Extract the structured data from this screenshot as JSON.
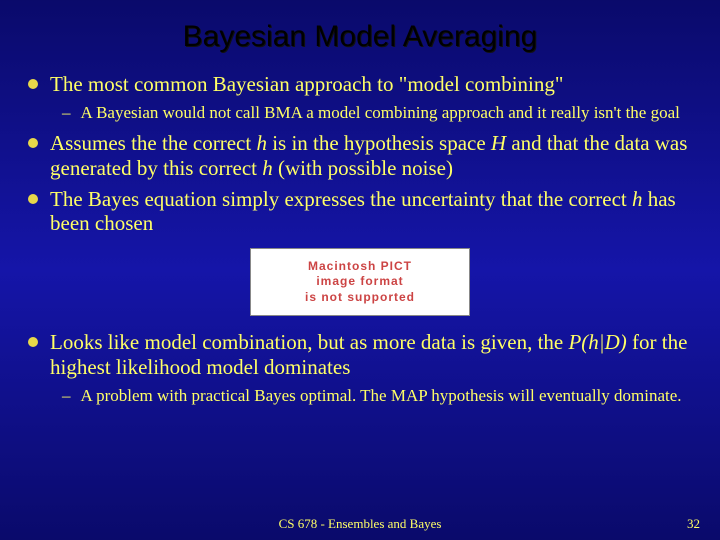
{
  "title": "Bayesian Model Averaging",
  "bullets": {
    "b1": "The most common Bayesian approach to \"model combining\"",
    "b1s1": "A Bayesian would not call BMA a model combining approach and it really isn't the goal",
    "b2a": "Assumes the the correct ",
    "b2b": " is in the hypothesis space ",
    "b2c": " and that the data was generated by this correct ",
    "b2d": " (with possible noise)",
    "b3a": "The Bayes equation simply expresses the uncertainty that the correct ",
    "b3b": " has been chosen",
    "b4a": "Looks like model combination, but as more data is given, the ",
    "b4b": " for the highest likelihood model dominates",
    "b4s1": "A problem with practical Bayes optimal.  The MAP hypothesis will eventually dominate."
  },
  "vars": {
    "h": "h",
    "H": "H",
    "PhD": "P(h|D)"
  },
  "placeholder": {
    "l1": "Macintosh PICT",
    "l2": "image format",
    "l3": "is not supported"
  },
  "footer": {
    "course": "CS 678 - Ensembles and Bayes",
    "page": "32"
  },
  "colors": {
    "bg_top": "#0a0a6b",
    "bg_mid": "#1515a8",
    "text": "#ffff66",
    "title": "#000000",
    "bullet_dot": "#e8d84a",
    "placeholder_text": "#cc4444"
  },
  "fonts": {
    "title_family": "Arial",
    "title_size_pt": 22,
    "body_family": "Times New Roman",
    "body_size_pt": 16,
    "sub_size_pt": 13
  }
}
